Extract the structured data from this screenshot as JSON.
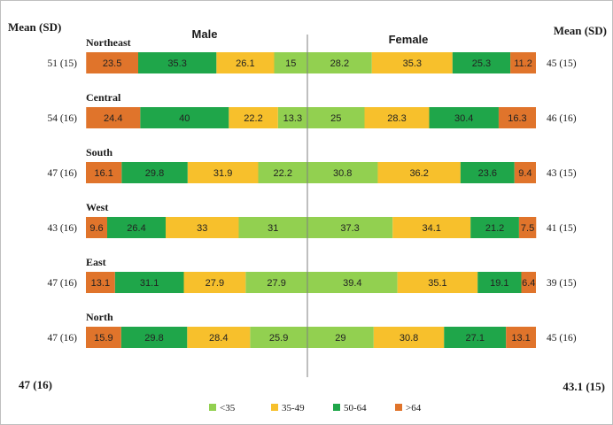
{
  "chart_data": {
    "type": "bar",
    "orientation": "horizontal-stacked",
    "mean_sd_label": "Mean (SD)",
    "male_label": "Male",
    "female_label": "Female",
    "categories": [
      "Northeast",
      "Central",
      "South",
      "West",
      "East",
      "North"
    ],
    "male_mean_sd": [
      "51 (15)",
      "54 (16)",
      "47 (16)",
      "43 (16)",
      "47 (16)",
      "47 (16)"
    ],
    "female_mean_sd": [
      "45 (15)",
      "46 (16)",
      "43 (15)",
      "41 (15)",
      "39 (15)",
      "45 (16)"
    ],
    "male_overall": "47 (16)",
    "female_overall": "43.1 (15)",
    "age_groups": [
      "<35",
      "35-49",
      "50-64",
      ">64"
    ],
    "colors": {
      "<35": "#92d050",
      "35-49": "#f7c02c",
      "50-64": "#1fa64a",
      ">64": "#e0742b"
    },
    "male": [
      [
        15,
        26.1,
        35.3,
        23.5
      ],
      [
        13.3,
        22.2,
        40,
        24.4
      ],
      [
        22.2,
        31.9,
        29.8,
        16.1
      ],
      [
        31,
        33,
        26.4,
        9.6
      ],
      [
        27.9,
        27.9,
        31.1,
        13.1
      ],
      [
        25.9,
        28.4,
        29.8,
        15.9
      ]
    ],
    "female": [
      [
        28.2,
        35.3,
        25.3,
        11.2
      ],
      [
        25,
        28.3,
        30.4,
        16.3
      ],
      [
        30.8,
        36.2,
        23.6,
        9.4
      ],
      [
        37.3,
        34.1,
        21.2,
        7.5
      ],
      [
        39.4,
        35.1,
        19.1,
        6.4
      ],
      [
        29,
        30.8,
        27.1,
        13.1
      ]
    ],
    "legend_position": "bottom-center",
    "unit": "%"
  }
}
